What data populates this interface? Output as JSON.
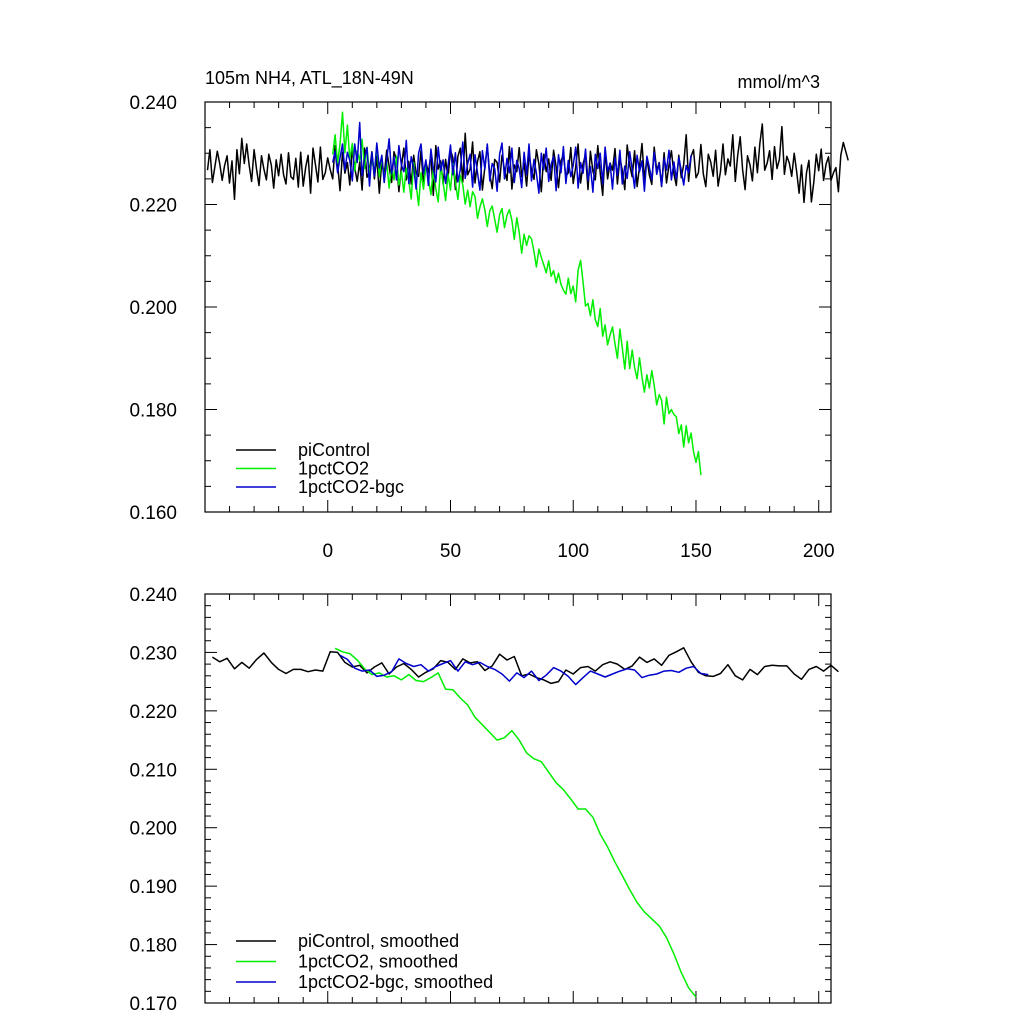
{
  "chart_data": [
    {
      "type": "line",
      "title": "105m NH4, ATL_18N-49N",
      "units": "mmol/m^3",
      "xlabel": "",
      "ylabel": "",
      "xlim": [
        -50,
        205
      ],
      "ylim": [
        0.16,
        0.24
      ],
      "xticks": [
        0,
        50,
        100,
        150,
        200
      ],
      "xtick_labels": [
        "0",
        "50",
        "100",
        "150",
        "200"
      ],
      "yticks": [
        0.16,
        0.18,
        0.2,
        0.22,
        0.24
      ],
      "ytick_labels": [
        "0.160",
        "0.180",
        "0.200",
        "0.220",
        "0.240"
      ],
      "legend": {
        "position": "lower-left"
      },
      "series": [
        {
          "name": "piControl",
          "color": "#000000",
          "x_start": -49,
          "x_step": 1,
          "values": [
            0.2267,
            0.2307,
            0.2243,
            0.2273,
            0.2304,
            0.228,
            0.2247,
            0.2276,
            0.2295,
            0.2242,
            0.2285,
            0.221,
            0.2307,
            0.226,
            0.2329,
            0.228,
            0.2318,
            0.2276,
            0.2245,
            0.2307,
            0.2268,
            0.2237,
            0.2295,
            0.2269,
            0.2248,
            0.2298,
            0.2277,
            0.2232,
            0.2287,
            0.2256,
            0.2298,
            0.2258,
            0.224,
            0.2301,
            0.2254,
            0.2249,
            0.229,
            0.2234,
            0.2302,
            0.2236,
            0.2273,
            0.2296,
            0.2222,
            0.231,
            0.2277,
            0.2244,
            0.2312,
            0.2249,
            0.2262,
            0.2291,
            0.2268,
            0.225,
            0.2315,
            0.2279,
            0.2227,
            0.2302,
            0.2261,
            0.2282,
            0.2238,
            0.231,
            0.2272,
            0.2245,
            0.2283,
            0.2228,
            0.231,
            0.2253,
            0.2264,
            0.2303,
            0.225,
            0.2294,
            0.2222,
            0.2284,
            0.2256,
            0.2306,
            0.2275,
            0.2243,
            0.2303,
            0.2287,
            0.2225,
            0.2274,
            0.231,
            0.2248,
            0.2284,
            0.224,
            0.2296,
            0.226,
            0.2255,
            0.2305,
            0.2238,
            0.2283,
            0.2262,
            0.2299,
            0.2218,
            0.2315,
            0.2269,
            0.2285,
            0.224,
            0.2288,
            0.2252,
            0.2306,
            0.2291,
            0.2229,
            0.2294,
            0.231,
            0.2244,
            0.2339,
            0.2258,
            0.2269,
            0.2322,
            0.2242,
            0.2284,
            0.2303,
            0.2228,
            0.2274,
            0.2314,
            0.2259,
            0.2231,
            0.2288,
            0.2282,
            0.2244,
            0.2296,
            0.2268,
            0.2247,
            0.2313,
            0.223,
            0.2277,
            0.2264,
            0.2311,
            0.2254,
            0.2281,
            0.2236,
            0.2297,
            0.2268,
            0.2249,
            0.2307,
            0.2279,
            0.2225,
            0.2298,
            0.2264,
            0.2289,
            0.2247,
            0.2306,
            0.2274,
            0.2233,
            0.2286,
            0.2296,
            0.2255,
            0.2262,
            0.2311,
            0.2241,
            0.2273,
            0.2318,
            0.2242,
            0.228,
            0.2297,
            0.2229,
            0.2304,
            0.2265,
            0.2248,
            0.2315,
            0.2262,
            0.2218,
            0.2303,
            0.225,
            0.2281,
            0.2267,
            0.2309,
            0.224,
            0.2292,
            0.2266,
            0.2229,
            0.2316,
            0.2276,
            0.2254,
            0.2305,
            0.2235,
            0.2274,
            0.2319,
            0.2249,
            0.229,
            0.2258,
            0.2239,
            0.2312,
            0.2266,
            0.2282,
            0.2235,
            0.2301,
            0.2242,
            0.2277,
            0.2305,
            0.226,
            0.2237,
            0.2296,
            0.2252,
            0.2278,
            0.2336,
            0.2245,
            0.2294,
            0.2307,
            0.2252,
            0.2262,
            0.2317,
            0.226,
            0.2235,
            0.2298,
            0.2283,
            0.2255,
            0.2306,
            0.2236,
            0.2265,
            0.2318,
            0.2258,
            0.2289,
            0.2275,
            0.2336,
            0.2245,
            0.2296,
            0.2332,
            0.2268,
            0.2229,
            0.2295,
            0.2277,
            0.2246,
            0.2312,
            0.2262,
            0.2318,
            0.2357,
            0.2267,
            0.2281,
            0.2305,
            0.2249,
            0.2313,
            0.227,
            0.2288,
            0.2352,
            0.2259,
            0.2294,
            0.2281,
            0.2255,
            0.23,
            0.2265,
            0.2222,
            0.2277,
            0.2204,
            0.2262,
            0.2286,
            0.2205,
            0.2244,
            0.2298,
            0.2266,
            0.2308,
            0.2247,
            0.2279,
            0.2293,
            0.2247,
            0.2262,
            0.2272,
            0.2225,
            0.2296,
            0.2321,
            0.2304,
            0.2286
          ]
        },
        {
          "name": "1pctCO2",
          "color": "#00ee00",
          "x_start": 2,
          "x_step": 1,
          "values": [
            0.2298,
            0.2336,
            0.2281,
            0.2318,
            0.238,
            0.2301,
            0.2355,
            0.2288,
            0.2319,
            0.2265,
            0.2304,
            0.2285,
            0.2327,
            0.227,
            0.2312,
            0.2257,
            0.229,
            0.226,
            0.2317,
            0.2254,
            0.2294,
            0.2249,
            0.2283,
            0.2232,
            0.2275,
            0.2248,
            0.2294,
            0.2238,
            0.2264,
            0.2224,
            0.2271,
            0.2247,
            0.2211,
            0.2282,
            0.224,
            0.2198,
            0.2262,
            0.223,
            0.2276,
            0.2251,
            0.2219,
            0.2269,
            0.2231,
            0.2205,
            0.2278,
            0.2243,
            0.2208,
            0.2259,
            0.2228,
            0.228,
            0.2244,
            0.221,
            0.2257,
            0.2238,
            0.2201,
            0.2228,
            0.2196,
            0.2225,
            0.2216,
            0.2173,
            0.2195,
            0.2211,
            0.2189,
            0.2157,
            0.2188,
            0.2197,
            0.2171,
            0.2146,
            0.218,
            0.2192,
            0.2155,
            0.2179,
            0.219,
            0.2169,
            0.2132,
            0.2174,
            0.2146,
            0.2105,
            0.2142,
            0.212,
            0.2139,
            0.2133,
            0.2108,
            0.2078,
            0.2113,
            0.2097,
            0.2082,
            0.2067,
            0.209,
            0.206,
            0.2071,
            0.2047,
            0.2066,
            0.2044,
            0.2033,
            0.2025,
            0.2056,
            0.2026,
            0.2041,
            0.201,
            0.2072,
            0.2091,
            0.2048,
            0.2002,
            0.2007,
            0.1983,
            0.2014,
            0.1975,
            0.1962,
            0.1997,
            0.1943,
            0.1965,
            0.1926,
            0.1946,
            0.1961,
            0.1928,
            0.19,
            0.1957,
            0.192,
            0.1879,
            0.1933,
            0.188,
            0.1916,
            0.1882,
            0.186,
            0.1901,
            0.1863,
            0.1834,
            0.1868,
            0.1842,
            0.1876,
            0.1847,
            0.1809,
            0.1829,
            0.1818,
            0.1772,
            0.1824,
            0.1792,
            0.18,
            0.179,
            0.1786,
            0.1753,
            0.177,
            0.1727,
            0.1768,
            0.1735,
            0.1754,
            0.1718,
            0.1697,
            0.1718,
            0.1672
          ]
        },
        {
          "name": "1pctCO2-bgc",
          "color": "#0000cc",
          "x_start": 2,
          "x_step": 1,
          "values": [
            0.2282,
            0.2304,
            0.2262,
            0.2291,
            0.2318,
            0.2267,
            0.2302,
            0.2286,
            0.2246,
            0.2318,
            0.2282,
            0.236,
            0.2256,
            0.229,
            0.2311,
            0.2236,
            0.2302,
            0.2255,
            0.232,
            0.2271,
            0.2296,
            0.2243,
            0.2286,
            0.2328,
            0.226,
            0.2293,
            0.2248,
            0.2315,
            0.2277,
            0.2264,
            0.2325,
            0.2241,
            0.2293,
            0.2272,
            0.223,
            0.23,
            0.2318,
            0.226,
            0.2287,
            0.2237,
            0.2308,
            0.2271,
            0.2244,
            0.2312,
            0.2266,
            0.2287,
            0.2241,
            0.2276,
            0.2316,
            0.2258,
            0.2301,
            0.2244,
            0.2268,
            0.2322,
            0.2251,
            0.228,
            0.2298,
            0.2234,
            0.2297,
            0.2262,
            0.2228,
            0.2305,
            0.2269,
            0.2318,
            0.2246,
            0.228,
            0.227,
            0.2226,
            0.2298,
            0.232,
            0.225,
            0.229,
            0.2262,
            0.231,
            0.2243,
            0.2286,
            0.227,
            0.2233,
            0.2302,
            0.2258,
            0.2318,
            0.2246,
            0.2288,
            0.2261,
            0.2222,
            0.23,
            0.2268,
            0.231,
            0.2245,
            0.2278,
            0.2294,
            0.2227,
            0.2297,
            0.2262,
            0.2313,
            0.2241,
            0.2286,
            0.2254,
            0.2276,
            0.2312,
            0.2232,
            0.2282,
            0.2261,
            0.2308,
            0.2247,
            0.2274,
            0.2224,
            0.2298,
            0.227,
            0.23,
            0.224,
            0.2312,
            0.2265,
            0.228,
            0.223,
            0.2292,
            0.2256,
            0.2306,
            0.224,
            0.2275,
            0.2251,
            0.2303,
            0.2268,
            0.2232,
            0.2296,
            0.2264,
            0.2285,
            0.2226,
            0.2294,
            0.2273,
            0.2248,
            0.2302,
            0.2259,
            0.228,
            0.2236,
            0.229,
            0.2267,
            0.2306,
            0.2248,
            0.2283,
            0.225,
            0.2292,
            0.2266,
            0.2238,
            0.2276,
            0.2262,
            0.2296
          ]
        }
      ]
    },
    {
      "type": "line",
      "title": "",
      "xlabel": "",
      "ylabel": "",
      "xlim": [
        -50,
        205
      ],
      "ylim": [
        0.17,
        0.24
      ],
      "xticks": [
        0,
        50,
        100,
        150,
        200
      ],
      "yticks": [
        0.17,
        0.18,
        0.19,
        0.2,
        0.21,
        0.22,
        0.23,
        0.24
      ],
      "ytick_labels": [
        "0.170",
        "0.180",
        "0.190",
        "0.200",
        "0.210",
        "0.220",
        "0.230",
        "0.240"
      ],
      "legend": {
        "position": "lower-left"
      },
      "series": [
        {
          "name": "piControl, smoothed",
          "color": "#000000",
          "x_start": -47,
          "x_step": 3,
          "values": [
            0.2292,
            0.2284,
            0.229,
            0.2272,
            0.2283,
            0.2273,
            0.2288,
            0.2299,
            0.2283,
            0.2271,
            0.2264,
            0.2271,
            0.2271,
            0.2267,
            0.227,
            0.2268,
            0.2301,
            0.23,
            0.2283,
            0.2275,
            0.2278,
            0.2265,
            0.2275,
            0.2282,
            0.2263,
            0.2275,
            0.2281,
            0.2271,
            0.2258,
            0.2266,
            0.2272,
            0.2286,
            0.2283,
            0.2271,
            0.2289,
            0.2282,
            0.2284,
            0.2269,
            0.2277,
            0.2297,
            0.2287,
            0.2293,
            0.226,
            0.2263,
            0.2257,
            0.2253,
            0.2247,
            0.225,
            0.227,
            0.2263,
            0.2274,
            0.2276,
            0.2268,
            0.2279,
            0.2284,
            0.228,
            0.2271,
            0.2277,
            0.2292,
            0.2283,
            0.2289,
            0.2278,
            0.2295,
            0.2301,
            0.2308,
            0.2284,
            0.2266,
            0.226,
            0.2259,
            0.2264,
            0.2279,
            0.226,
            0.2253,
            0.2271,
            0.2262,
            0.2276,
            0.2278,
            0.2277,
            0.2277,
            0.2263,
            0.2254,
            0.2271,
            0.2276,
            0.2268,
            0.2278,
            0.2267
          ]
        },
        {
          "name": "1pctCO2, smoothed",
          "color": "#00ee00",
          "x_start": 3,
          "x_step": 3,
          "values": [
            0.2307,
            0.2301,
            0.2298,
            0.2287,
            0.2272,
            0.2262,
            0.2265,
            0.2258,
            0.226,
            0.2253,
            0.2262,
            0.2252,
            0.225,
            0.2257,
            0.2265,
            0.2237,
            0.2236,
            0.2222,
            0.221,
            0.2189,
            0.2176,
            0.2163,
            0.215,
            0.2154,
            0.2166,
            0.215,
            0.2128,
            0.2118,
            0.2113,
            0.2095,
            0.2077,
            0.2065,
            0.2049,
            0.2032,
            0.2032,
            0.2018,
            0.1989,
            0.1967,
            0.1941,
            0.1918,
            0.1894,
            0.1872,
            0.1856,
            0.1844,
            0.1832,
            0.1812,
            0.1784,
            0.1752,
            0.1726,
            0.171
          ]
        },
        {
          "name": "1pctCO2-bgc, smoothed",
          "color": "#0000cc",
          "x_start": 5,
          "x_step": 3,
          "values": [
            0.2295,
            0.2288,
            0.2273,
            0.2268,
            0.227,
            0.2259,
            0.2261,
            0.2267,
            0.2289,
            0.2281,
            0.2276,
            0.2279,
            0.2268,
            0.2276,
            0.2281,
            0.2286,
            0.2268,
            0.2284,
            0.2279,
            0.2283,
            0.2276,
            0.2271,
            0.2263,
            0.2251,
            0.2265,
            0.2257,
            0.2268,
            0.2252,
            0.2261,
            0.2274,
            0.2268,
            0.2259,
            0.2245,
            0.2257,
            0.2268,
            0.2263,
            0.2258,
            0.2263,
            0.2268,
            0.2272,
            0.227,
            0.2257,
            0.2261,
            0.2263,
            0.2268,
            0.2269,
            0.2266,
            0.2273,
            0.2276,
            0.2264,
            0.2262
          ]
        }
      ]
    }
  ]
}
